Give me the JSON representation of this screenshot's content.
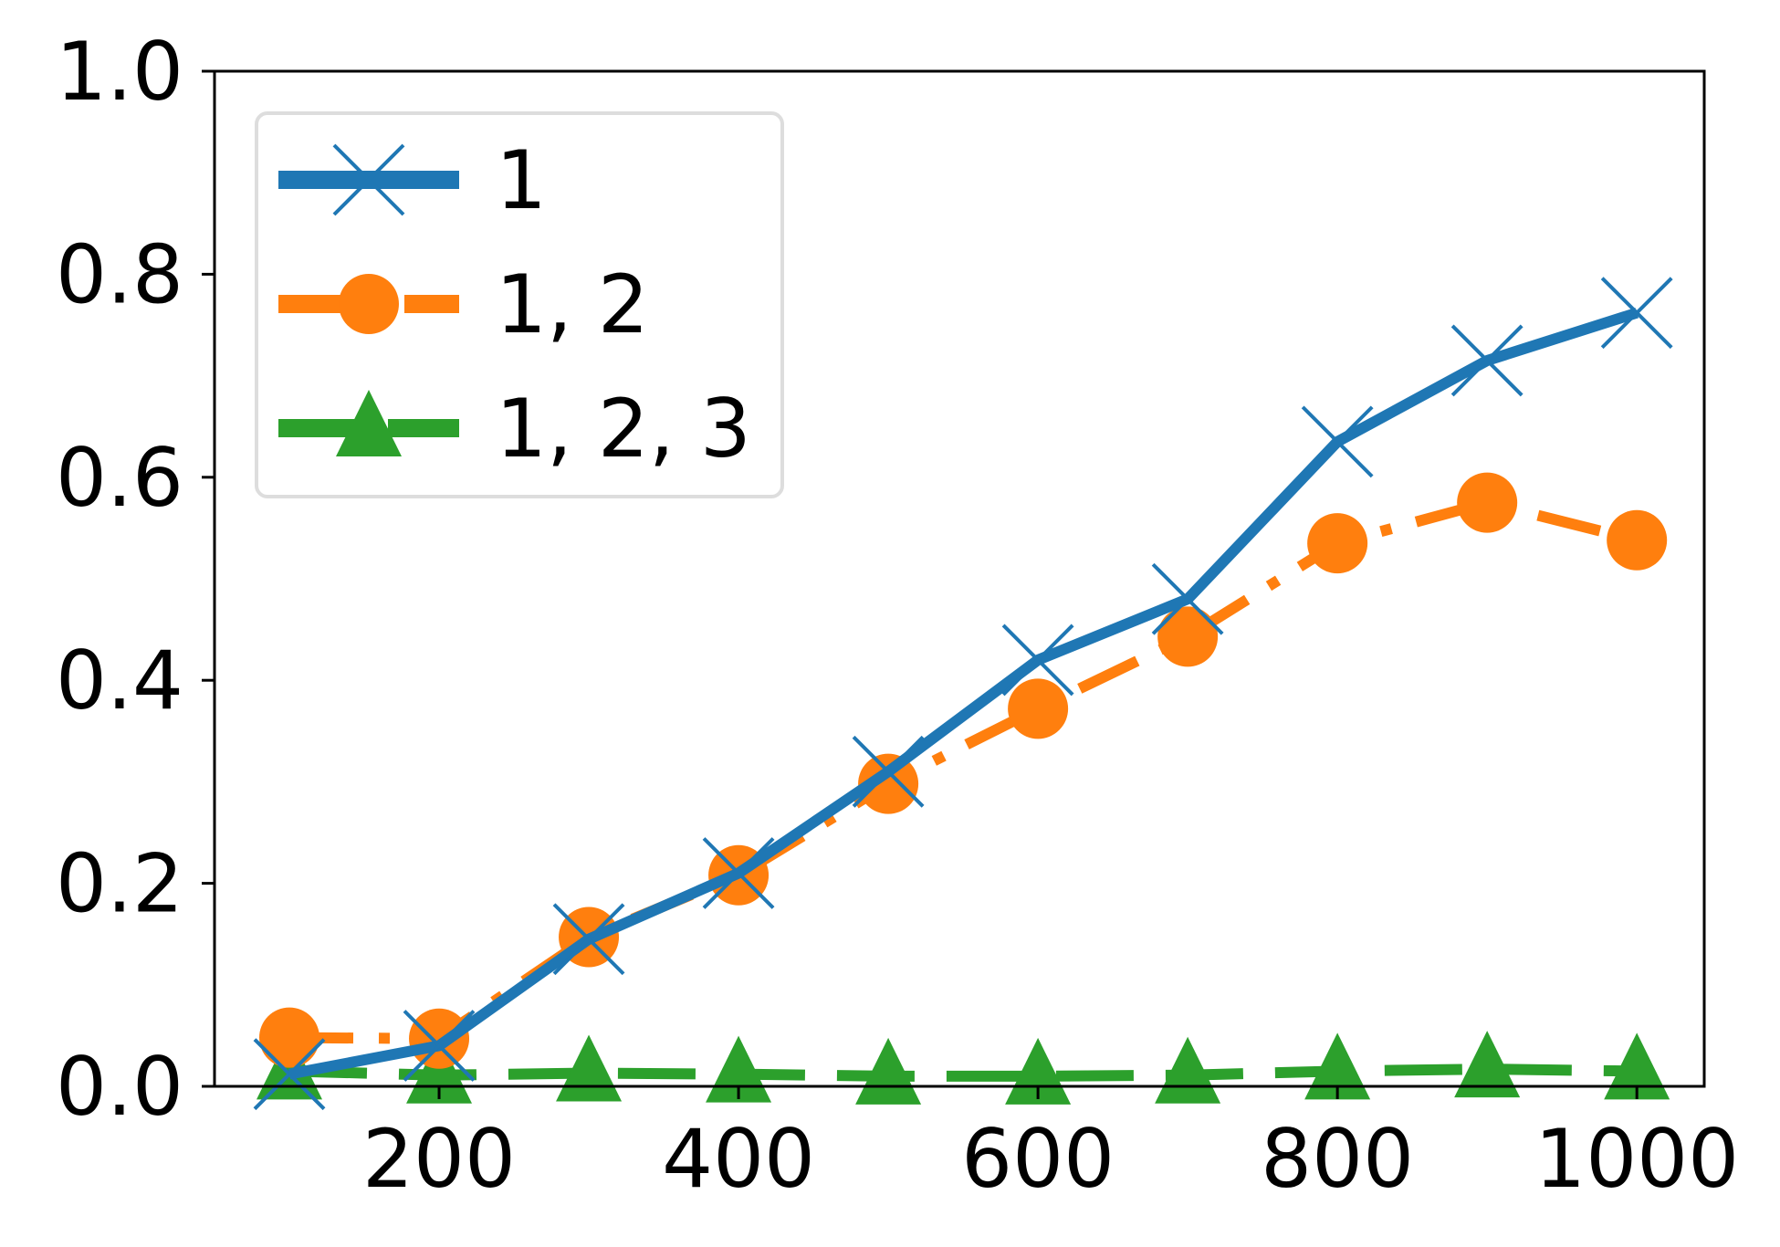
{
  "chart_data": {
    "type": "line",
    "title": "",
    "xlabel": "",
    "ylabel": "",
    "x": [
      100,
      200,
      300,
      400,
      500,
      600,
      700,
      800,
      900,
      1000
    ],
    "xlim": [
      50,
      1045
    ],
    "ylim": [
      0.0,
      1.0
    ],
    "xticks": [
      200,
      400,
      600,
      800,
      1000
    ],
    "xtick_labels": [
      "200",
      "400",
      "600",
      "800",
      "1000"
    ],
    "yticks": [
      0.0,
      0.2,
      0.4,
      0.6,
      0.8,
      1.0
    ],
    "ytick_labels": [
      "0.0",
      "0.2",
      "0.4",
      "0.6",
      "0.8",
      "1.0"
    ],
    "grid": false,
    "legend_position": "top-left",
    "series": [
      {
        "name": "1",
        "color": "#1f77b4",
        "line_style": "solid",
        "marker": "x-cross",
        "values": [
          0.012,
          0.04,
          0.145,
          0.21,
          0.31,
          0.42,
          0.48,
          0.635,
          0.715,
          0.762
        ]
      },
      {
        "name": "1, 2",
        "color": "#ff7f0e",
        "line_style": "dash-dot",
        "marker": "circle",
        "values": [
          0.048,
          0.047,
          0.147,
          0.208,
          0.298,
          0.372,
          0.443,
          0.535,
          0.575,
          0.538
        ]
      },
      {
        "name": "1, 2, 3",
        "color": "#2ca02c",
        "line_style": "dashed",
        "marker": "triangle",
        "values": [
          0.015,
          0.011,
          0.013,
          0.012,
          0.01,
          0.01,
          0.011,
          0.015,
          0.017,
          0.015
        ]
      }
    ]
  }
}
